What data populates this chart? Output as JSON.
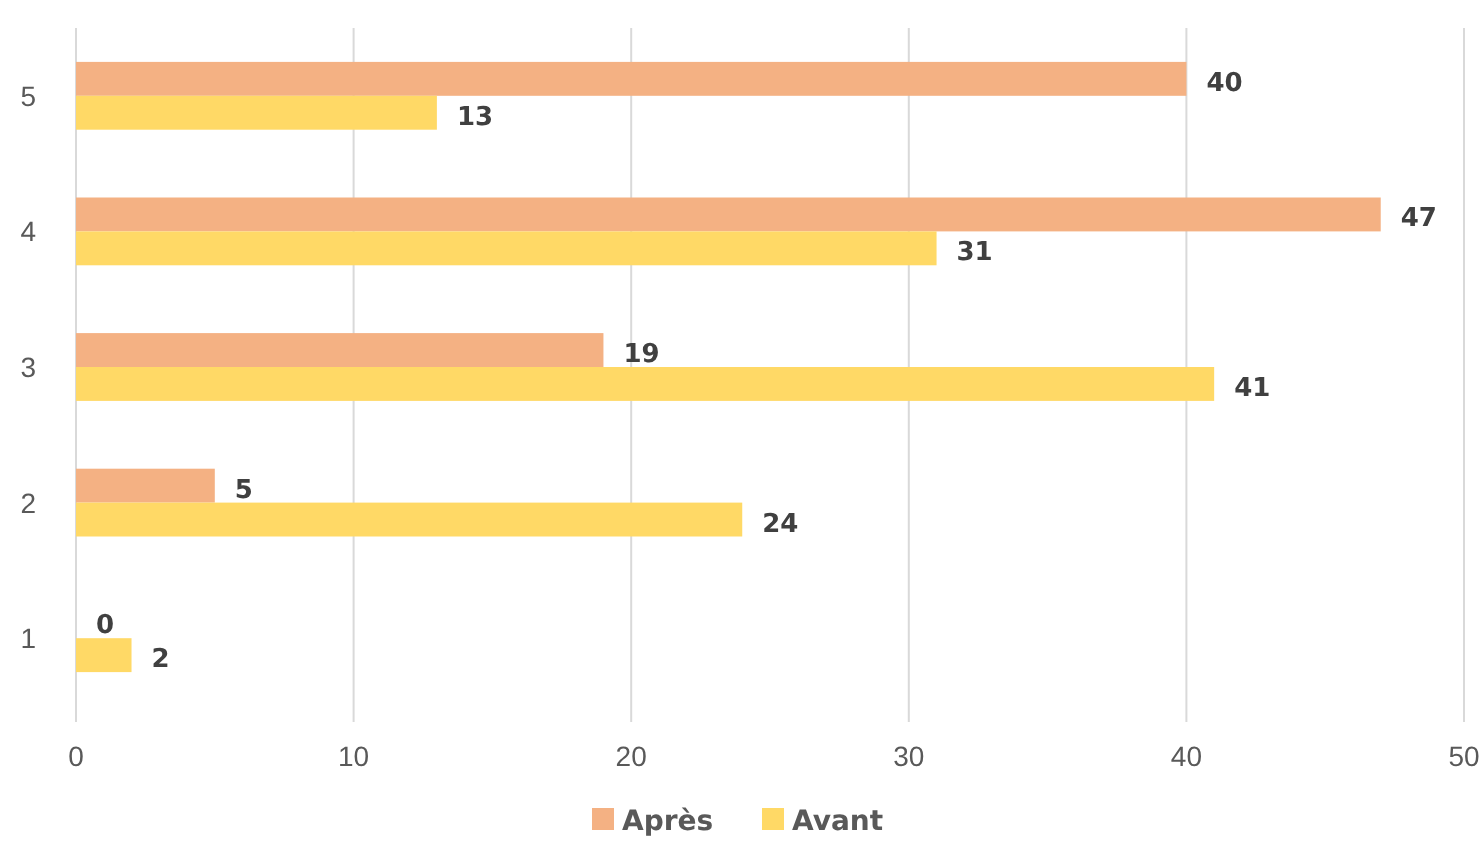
{
  "chart_data": {
    "type": "bar",
    "orientation": "horizontal",
    "categories": [
      "5",
      "4",
      "3",
      "2",
      "1"
    ],
    "series": [
      {
        "name": "Après",
        "color": "#f4b183",
        "values": [
          40,
          47,
          19,
          5,
          0
        ]
      },
      {
        "name": "Avant",
        "color": "#ffd966",
        "values": [
          13,
          31,
          41,
          24,
          2
        ]
      }
    ],
    "xlim": [
      0,
      50
    ],
    "xticks": [
      0,
      10,
      20,
      30,
      40,
      50
    ],
    "grid": "x",
    "legend": "bottom",
    "data_labels": true
  }
}
